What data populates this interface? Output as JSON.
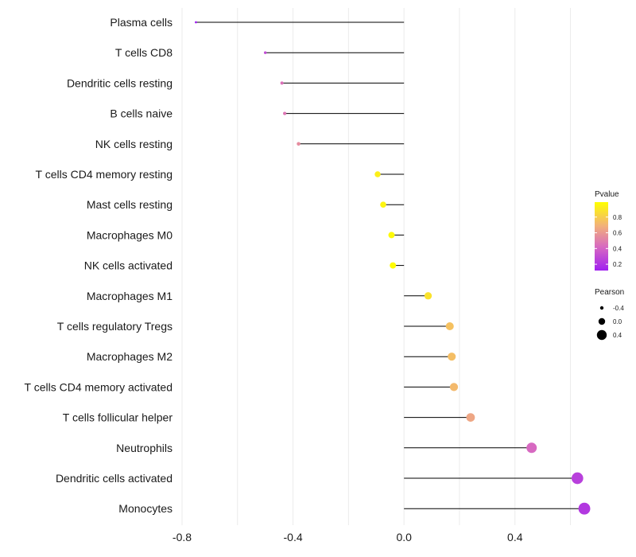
{
  "chart_data": {
    "type": "lollipop",
    "title": "",
    "xlabel": "",
    "ylabel": "",
    "xlim": [
      -0.82,
      0.67
    ],
    "x_ticks": [
      -0.8,
      -0.4,
      0.0,
      0.4
    ],
    "x_tick_labels": [
      "-0.8",
      "-0.4",
      "0.0",
      "0.4"
    ],
    "grid": "vertical",
    "baseline": 0.0,
    "points": [
      {
        "label": "Plasma cells",
        "x": -0.75,
        "pvalue": 0.12
      },
      {
        "label": "T cells CD8",
        "x": -0.5,
        "pvalue": 0.3
      },
      {
        "label": "Dendritic cells resting",
        "x": -0.44,
        "pvalue": 0.45
      },
      {
        "label": "B cells naive",
        "x": -0.43,
        "pvalue": 0.47
      },
      {
        "label": "NK cells resting",
        "x": -0.38,
        "pvalue": 0.55
      },
      {
        "label": "T cells CD4 memory resting",
        "x": -0.095,
        "pvalue": 0.93
      },
      {
        "label": "Mast cells resting",
        "x": -0.075,
        "pvalue": 0.95
      },
      {
        "label": "Macrophages M0",
        "x": -0.045,
        "pvalue": 0.97
      },
      {
        "label": "NK cells activated",
        "x": -0.04,
        "pvalue": 0.98
      },
      {
        "label": "Macrophages M1",
        "x": 0.087,
        "pvalue": 0.88
      },
      {
        "label": "T cells regulatory  Tregs ",
        "x": 0.165,
        "pvalue": 0.75
      },
      {
        "label": "Macrophages M2",
        "x": 0.172,
        "pvalue": 0.74
      },
      {
        "label": "T cells CD4 memory activated",
        "x": 0.18,
        "pvalue": 0.72
      },
      {
        "label": "T cells follicular helper",
        "x": 0.24,
        "pvalue": 0.65
      },
      {
        "label": "Neutrophils",
        "x": 0.46,
        "pvalue": 0.42
      },
      {
        "label": "Dendritic cells activated",
        "x": 0.625,
        "pvalue": 0.25
      },
      {
        "label": "Monocytes",
        "x": 0.65,
        "pvalue": 0.22
      }
    ],
    "legend": {
      "position": "right",
      "color": {
        "title": "Pvalue",
        "ticks": [
          0.8,
          0.6,
          0.4,
          0.2
        ],
        "tick_labels": [
          "0.8",
          "0.6",
          "0.4",
          "0.2"
        ],
        "range": [
          0.12,
          0.99
        ],
        "low_color": "#a020f0",
        "high_color": "#ffff00"
      },
      "size": {
        "title": "Pearson",
        "values": [
          -0.4,
          0.0,
          0.4
        ],
        "labels": [
          "-0.4",
          "0.0",
          "0.4"
        ]
      }
    }
  },
  "colors": {
    "stem": "#000000",
    "grid": "#ebebeb",
    "background": "#ffffff"
  }
}
